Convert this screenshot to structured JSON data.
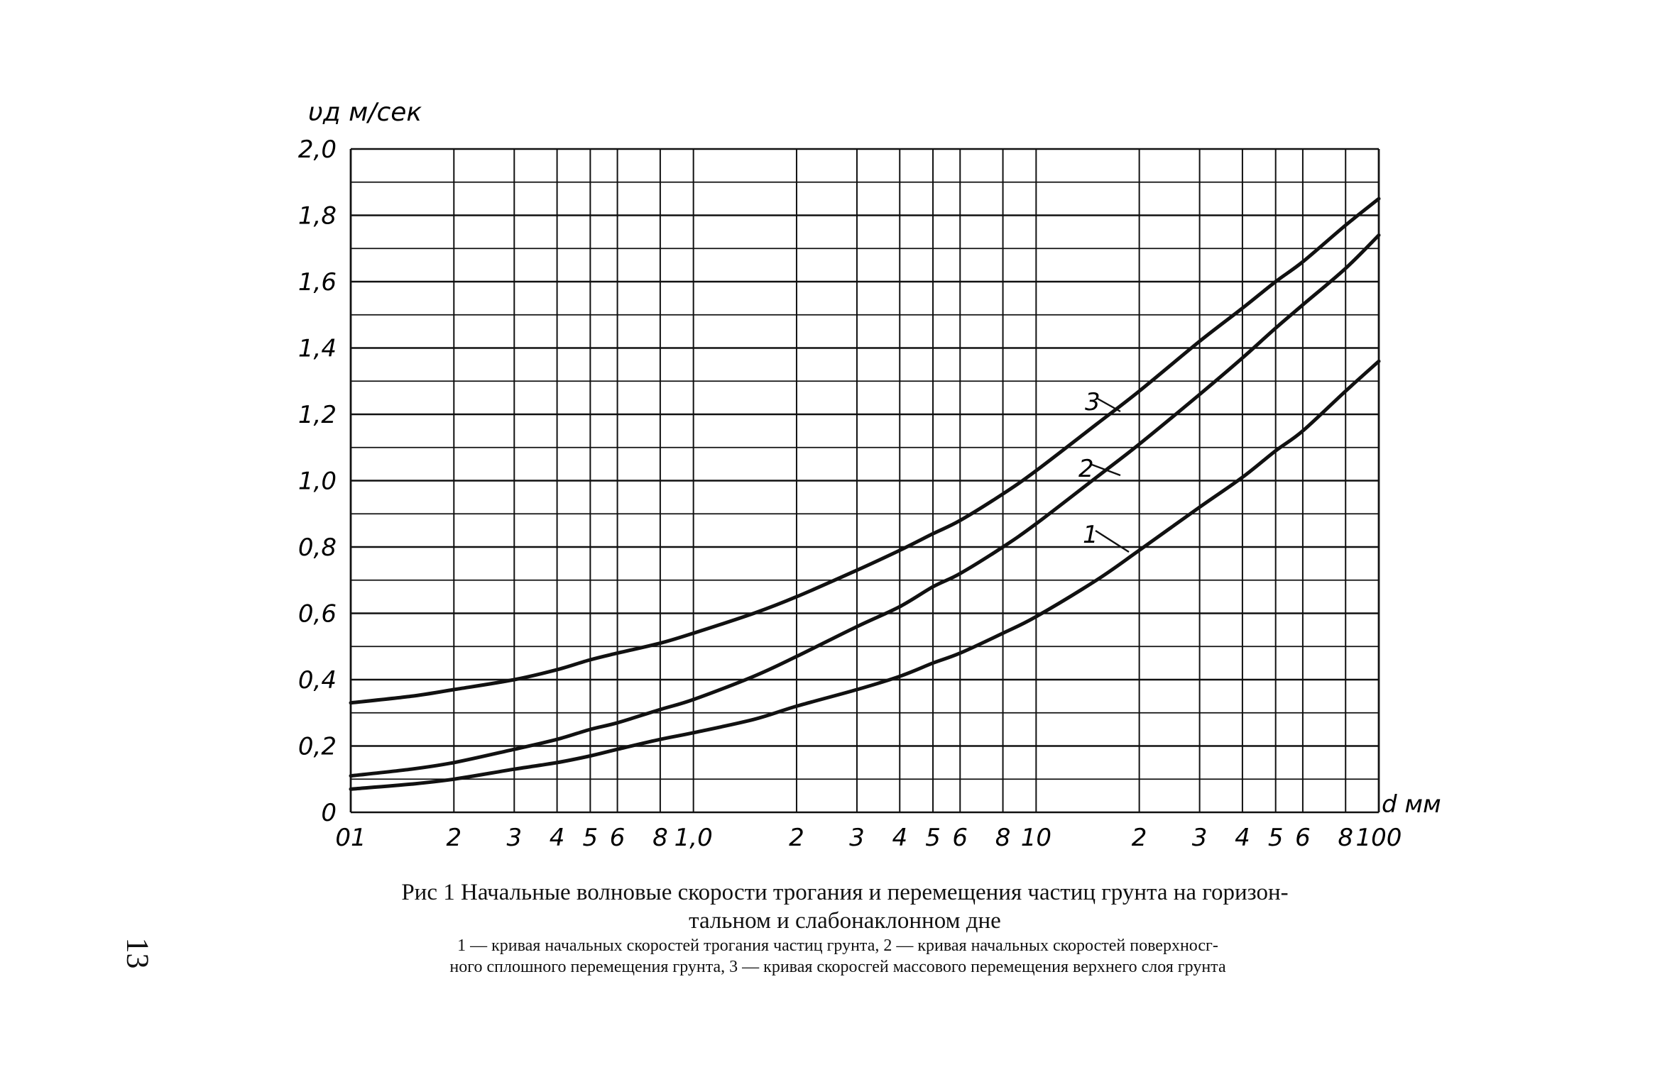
{
  "chart_data": {
    "type": "line",
    "x_scale": "log",
    "xlim": [
      0.1,
      100
    ],
    "ylim": [
      0,
      2.0
    ],
    "grid": true,
    "ylabel": "υд м/сек",
    "xlabel": "d мм",
    "y_ticks": [
      0,
      0.2,
      0.4,
      0.6,
      0.8,
      1.0,
      1.2,
      1.4,
      1.6,
      1.8,
      2.0
    ],
    "y_tick_labels": [
      "0",
      "0,2",
      "0,4",
      "0,6",
      "0,8",
      "1,0",
      "1,2",
      "1,4",
      "1,6",
      "1,8",
      "2,0"
    ],
    "x_ticks": [
      0.1,
      0.2,
      0.3,
      0.4,
      0.5,
      0.6,
      0.8,
      1,
      2,
      3,
      4,
      5,
      6,
      8,
      10,
      20,
      30,
      40,
      50,
      60,
      80,
      100
    ],
    "x_tick_labels": [
      "01",
      "2",
      "3",
      "4",
      "5",
      "6",
      "8",
      "1,0",
      "2",
      "3",
      "4",
      "5",
      "6",
      "8",
      "10",
      "2",
      "3",
      "4",
      "5",
      "6",
      "8",
      "100"
    ],
    "series": [
      {
        "name": "1",
        "color": "#111111",
        "x": [
          0.1,
          0.15,
          0.2,
          0.3,
          0.4,
          0.5,
          0.6,
          0.8,
          1,
          1.5,
          2,
          3,
          4,
          5,
          6,
          8,
          10,
          15,
          20,
          30,
          40,
          50,
          60,
          80,
          100
        ],
        "y": [
          0.07,
          0.085,
          0.1,
          0.13,
          0.15,
          0.17,
          0.19,
          0.22,
          0.24,
          0.28,
          0.32,
          0.37,
          0.41,
          0.45,
          0.48,
          0.54,
          0.59,
          0.7,
          0.79,
          0.92,
          1.01,
          1.09,
          1.15,
          1.27,
          1.36
        ]
      },
      {
        "name": "2",
        "color": "#111111",
        "x": [
          0.1,
          0.15,
          0.2,
          0.3,
          0.4,
          0.5,
          0.6,
          0.8,
          1,
          1.5,
          2,
          3,
          4,
          5,
          6,
          8,
          10,
          15,
          20,
          30,
          40,
          50,
          60,
          80,
          100
        ],
        "y": [
          0.11,
          0.13,
          0.15,
          0.19,
          0.22,
          0.25,
          0.27,
          0.31,
          0.34,
          0.41,
          0.47,
          0.56,
          0.62,
          0.68,
          0.72,
          0.8,
          0.87,
          1.01,
          1.11,
          1.26,
          1.37,
          1.46,
          1.53,
          1.64,
          1.74
        ]
      },
      {
        "name": "3",
        "color": "#111111",
        "x": [
          0.1,
          0.15,
          0.2,
          0.3,
          0.4,
          0.5,
          0.6,
          0.8,
          1,
          1.5,
          2,
          3,
          4,
          5,
          6,
          8,
          10,
          15,
          20,
          30,
          40,
          50,
          60,
          80,
          100
        ],
        "y": [
          0.33,
          0.35,
          0.37,
          0.4,
          0.43,
          0.46,
          0.48,
          0.51,
          0.54,
          0.6,
          0.65,
          0.73,
          0.79,
          0.84,
          0.88,
          0.96,
          1.03,
          1.17,
          1.27,
          1.42,
          1.52,
          1.6,
          1.66,
          1.77,
          1.85
        ]
      }
    ],
    "annotations": [
      {
        "text": "3",
        "series": "3"
      },
      {
        "text": "2",
        "series": "2"
      },
      {
        "text": "1",
        "series": "1"
      }
    ]
  },
  "caption": {
    "line1": "Рис  1  Начальные  волновые  скорости  трогания  и  перемещения  частиц  грунта  на  горизон-",
    "line2": "тальном  и  слабонаклонном  дне"
  },
  "note": {
    "line1": "1 — кривая  начальных  скоростей  трогания  частиц  грунта,  2 — кривая  начальных  скоростей  поверхносг-",
    "line2": "ного  сплошного  перемещения  грунта,  3 — кривая  скоросгей  массового  перемещения верхнего  слоя  грунта"
  },
  "page_number": "13"
}
